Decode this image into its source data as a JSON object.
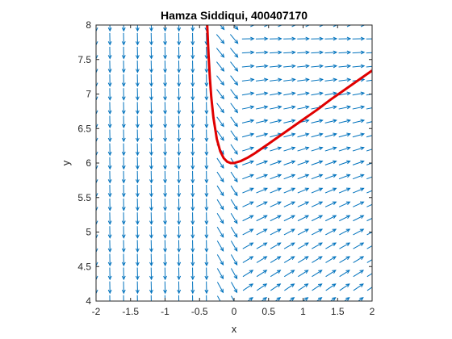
{
  "chart_data": {
    "type": "line",
    "title": "Hamza Siddiqui, 400407170",
    "xlabel": "x",
    "ylabel": "y",
    "xlim": [
      -2,
      2
    ],
    "ylim": [
      4,
      8
    ],
    "xticks": [
      -2,
      -1.5,
      -1,
      -0.5,
      0,
      0.5,
      1,
      1.5,
      2
    ],
    "xtick_labels": [
      "-2",
      "-1.5",
      "-1",
      "-0.5",
      "0",
      "0.5",
      "1",
      "1.5",
      "2"
    ],
    "yticks": [
      4,
      4.5,
      5,
      5.5,
      6,
      6.5,
      7,
      7.5,
      8
    ],
    "ytick_labels": [
      "4",
      "4.5",
      "5",
      "5.5",
      "6",
      "6.5",
      "7",
      "7.5",
      "8"
    ],
    "grid": false,
    "colors": {
      "field": "#0072bd",
      "curve": "#e00000",
      "axes": "#262626"
    },
    "direction_field": {
      "x_range": [
        -2,
        2
      ],
      "y_range": [
        4,
        8
      ],
      "grid_count": 21
    },
    "series": [
      {
        "x": [
          -0.39,
          -0.37,
          -0.35,
          -0.33,
          -0.3,
          -0.25,
          -0.2,
          -0.15,
          -0.1,
          -0.05,
          0,
          0.1,
          0.2,
          0.3,
          0.4,
          0.5,
          0.6,
          0.8,
          1.0,
          1.2,
          1.4,
          1.6,
          1.8,
          2.0
        ],
        "y": [
          8.0,
          7.56,
          7.22,
          6.95,
          6.66,
          6.35,
          6.17,
          6.07,
          6.02,
          6.0,
          6.0,
          6.03,
          6.08,
          6.14,
          6.21,
          6.28,
          6.35,
          6.49,
          6.63,
          6.77,
          6.92,
          7.06,
          7.2,
          7.34
        ]
      }
    ]
  }
}
